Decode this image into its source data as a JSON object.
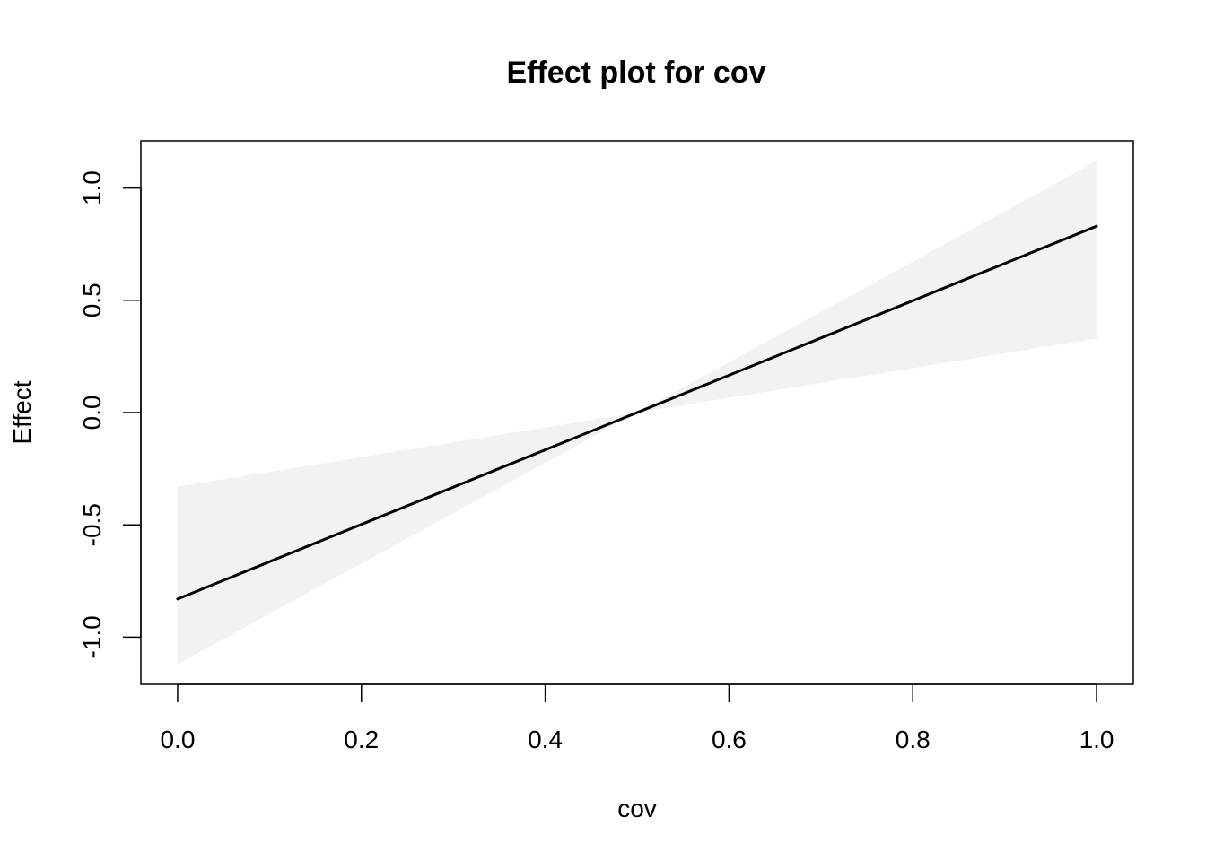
{
  "chart_data": {
    "type": "line",
    "title": "Effect plot for cov",
    "xlabel": "cov",
    "ylabel": "Effect",
    "xlim": [
      -0.04,
      1.04
    ],
    "ylim": [
      -1.21,
      1.21
    ],
    "x_ticks": [
      0.0,
      0.2,
      0.4,
      0.6,
      0.8,
      1.0
    ],
    "x_tick_labels": [
      "0.0",
      "0.2",
      "0.4",
      "0.6",
      "0.8",
      "1.0"
    ],
    "y_ticks": [
      -1.0,
      -0.5,
      0.0,
      0.5,
      1.0
    ],
    "y_tick_labels": [
      "-1.0",
      "-0.5",
      "0.0",
      "0.5",
      "1.0"
    ],
    "grid": false,
    "legend": "none",
    "line": {
      "x": [
        0.0,
        1.0
      ],
      "y": [
        -0.83,
        0.83
      ],
      "color": "#000000"
    },
    "band": {
      "x": [
        0.0,
        0.5,
        1.0
      ],
      "lower": [
        -1.12,
        0.0,
        0.33
      ],
      "upper": [
        -0.33,
        0.0,
        1.12
      ],
      "color": "#f2f2f2"
    }
  }
}
